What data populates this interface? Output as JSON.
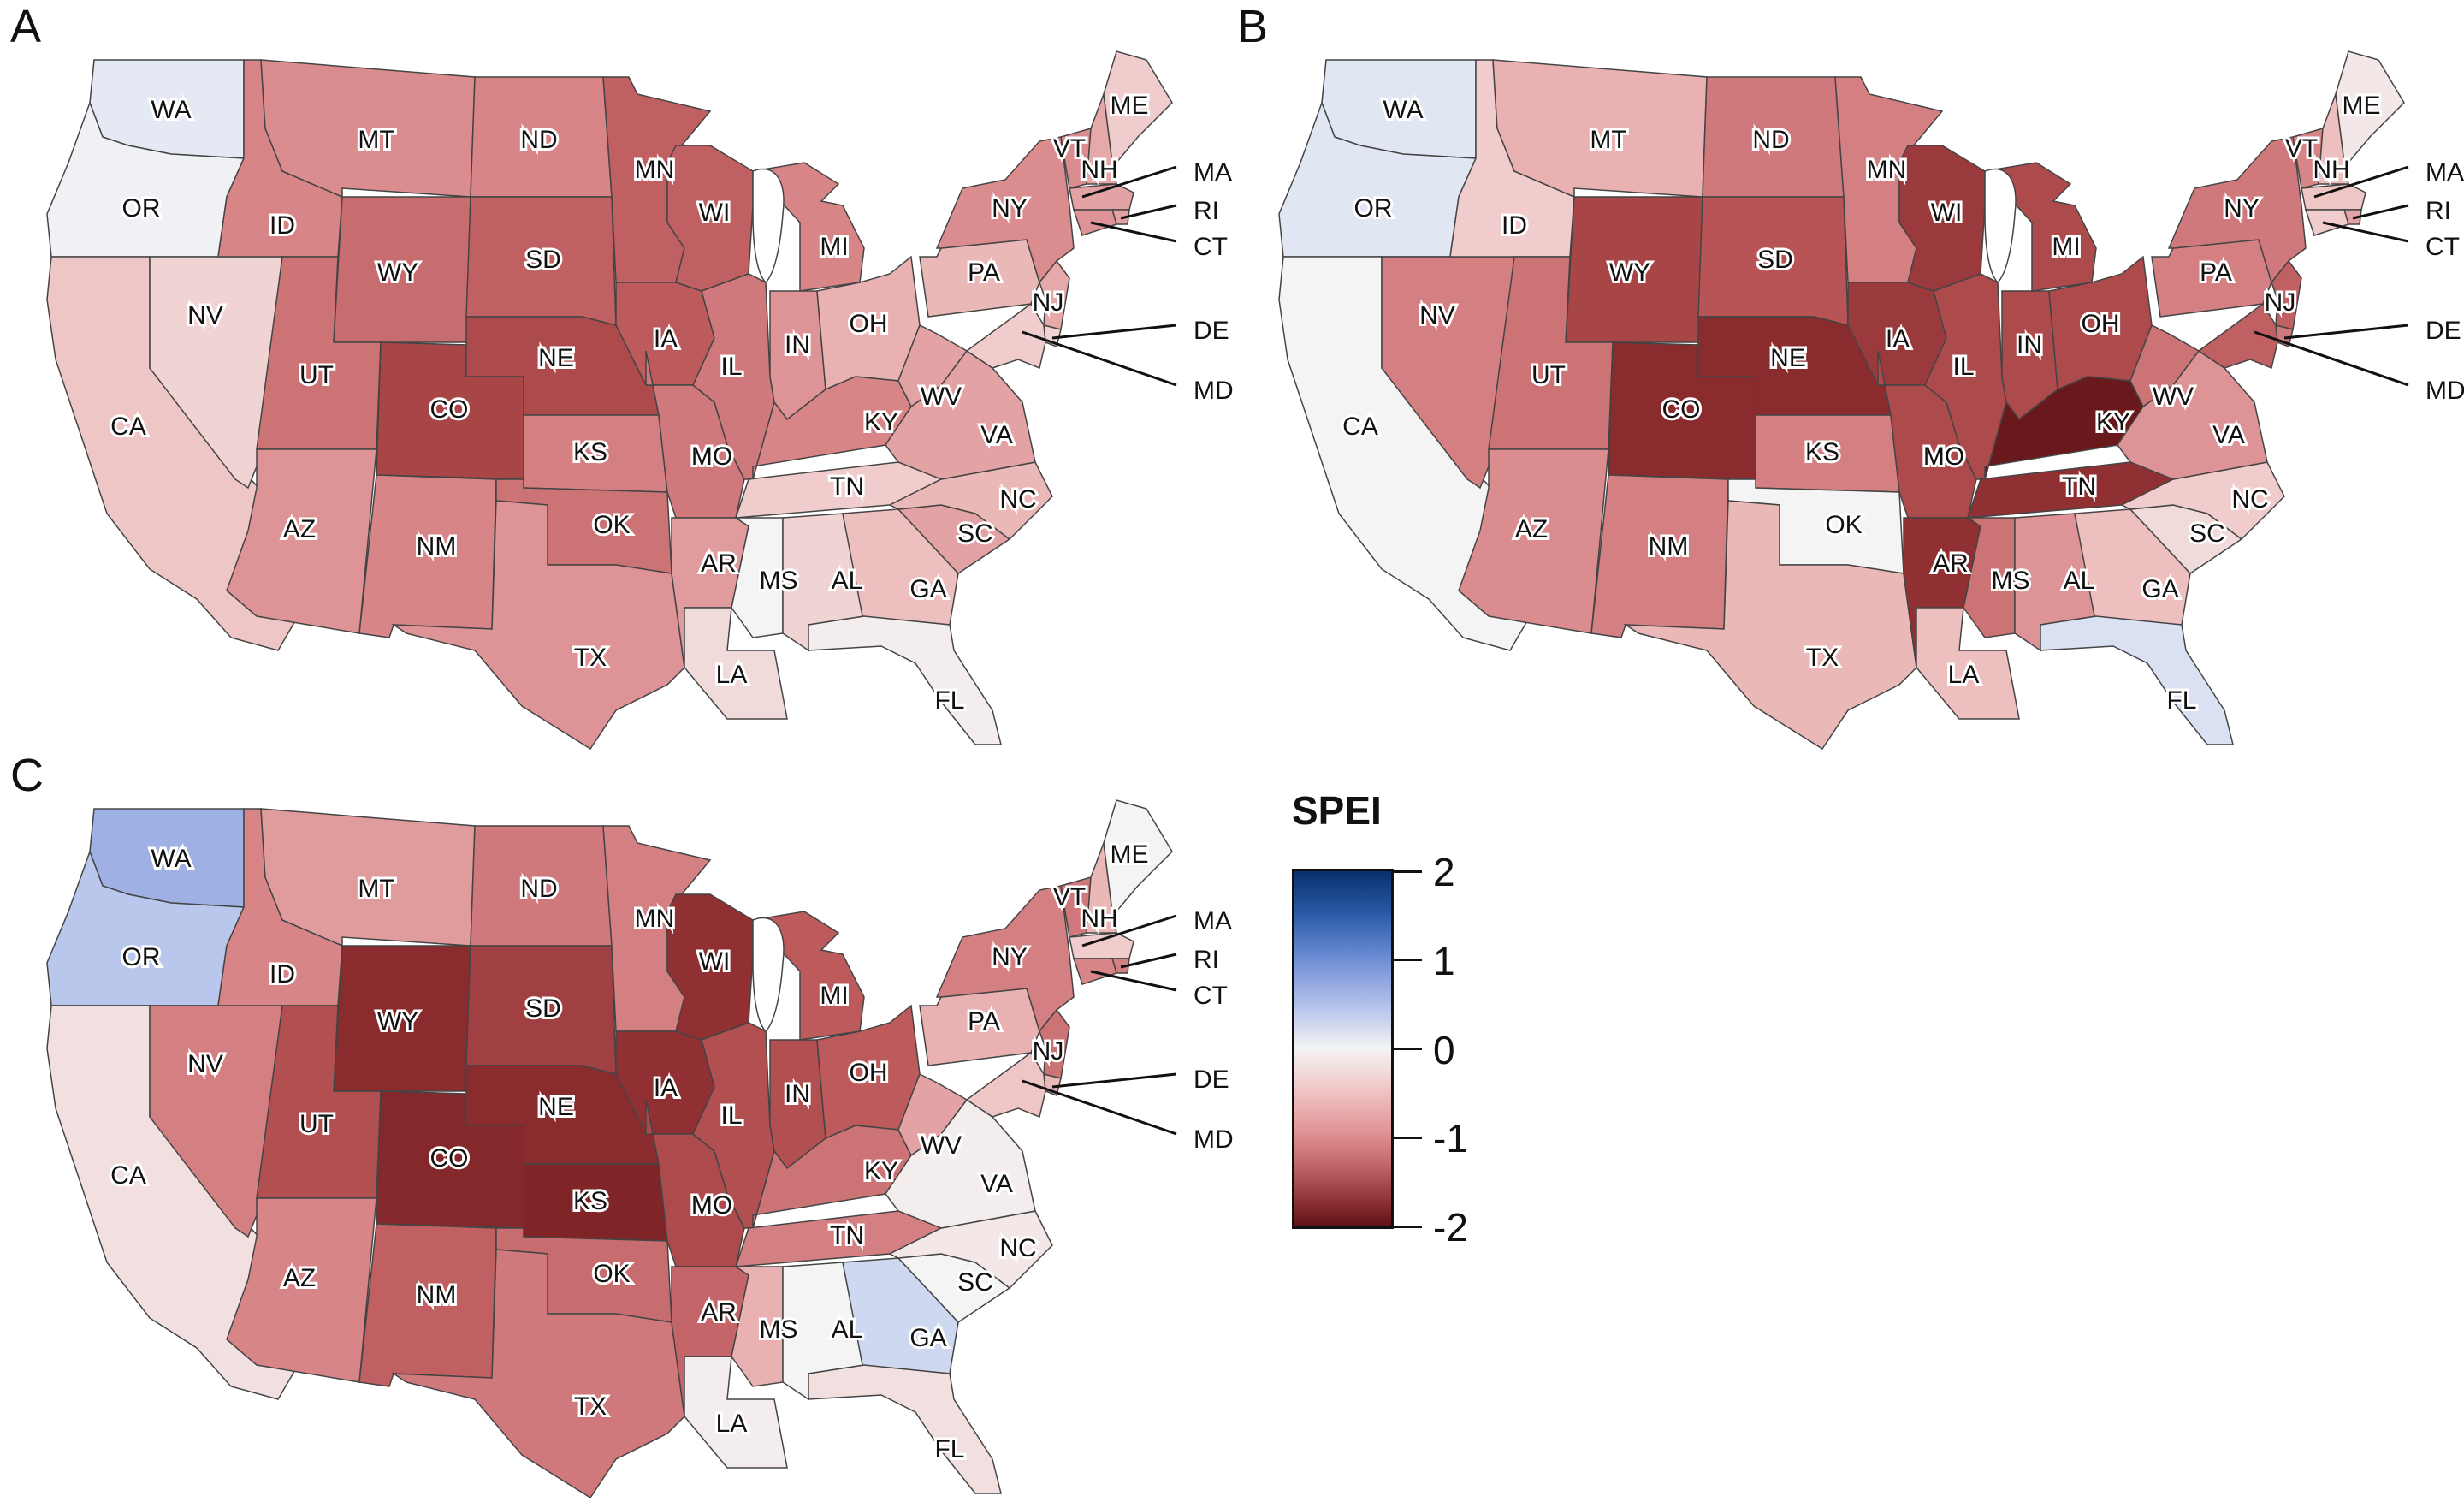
{
  "figure": {
    "panels": [
      {
        "letter": "A",
        "title": ""
      },
      {
        "letter": "B",
        "title": ""
      },
      {
        "letter": "C",
        "title": ""
      }
    ],
    "legend": {
      "title": "SPEI",
      "ticks": [
        "2",
        "1",
        "0",
        "-1",
        "-2"
      ],
      "range": [
        -2,
        2
      ],
      "colors": {
        "max": "#08306b",
        "mid_high": "#9eb0e4",
        "zero": "#f4f4f4",
        "mid_low": "#e6a0a0",
        "min": "#5e1116"
      }
    }
  },
  "chart_data": {
    "type": "choropleth",
    "variable": "SPEI",
    "scale_range": [
      -2,
      2
    ],
    "states": [
      "WA",
      "OR",
      "CA",
      "NV",
      "ID",
      "MT",
      "WY",
      "UT",
      "CO",
      "AZ",
      "NM",
      "ND",
      "SD",
      "NE",
      "KS",
      "OK",
      "TX",
      "MN",
      "IA",
      "MO",
      "AR",
      "LA",
      "WI",
      "IL",
      "MI",
      "IN",
      "OH",
      "KY",
      "TN",
      "MS",
      "AL",
      "GA",
      "FL",
      "SC",
      "NC",
      "VA",
      "WV",
      "PA",
      "NY",
      "VT",
      "NH",
      "ME",
      "MA",
      "RI",
      "CT",
      "NJ",
      "DE",
      "MD"
    ],
    "external_labels": [
      "MA",
      "RI",
      "CT",
      "DE",
      "MD"
    ],
    "panels": {
      "A": {
        "WA": 0.2,
        "OR": 0.05,
        "CA": -0.35,
        "NV": -0.25,
        "ID": -0.8,
        "MT": -0.75,
        "WY": -1.0,
        "UT": -0.95,
        "CO": -1.35,
        "AZ": -0.7,
        "NM": -0.8,
        "ND": -0.8,
        "SD": -1.1,
        "NE": -1.3,
        "KS": -0.85,
        "OK": -0.95,
        "TX": -0.7,
        "MN": -1.1,
        "IA": -1.15,
        "MO": -0.9,
        "AR": -0.65,
        "LA": -0.2,
        "WI": -1.1,
        "IL": -0.9,
        "MI": -0.8,
        "IN": -0.7,
        "OH": -0.5,
        "KY": -0.8,
        "TN": -0.3,
        "MS": 0.0,
        "AL": -0.25,
        "GA": -0.4,
        "FL": -0.05,
        "SC": -0.6,
        "NC": -0.45,
        "VA": -0.6,
        "WV": -0.6,
        "PA": -0.45,
        "NY": -0.75,
        "VT": -0.75,
        "NH": -0.55,
        "ME": -0.3,
        "MA": -0.6,
        "RI": -0.6,
        "CT": -0.7,
        "NJ": -0.55,
        "DE": -0.25,
        "MD": -0.3
      },
      "B": {
        "WA": 0.25,
        "OR": 0.25,
        "CA": 0.0,
        "NV": -0.85,
        "ID": -0.3,
        "MT": -0.5,
        "WY": -1.35,
        "UT": -0.95,
        "CO": -1.6,
        "AZ": -0.75,
        "NM": -0.85,
        "ND": -0.9,
        "SD": -1.2,
        "NE": -1.6,
        "KS": -0.85,
        "OK": 0.0,
        "TX": -0.45,
        "MN": -0.85,
        "IA": -1.45,
        "MO": -1.3,
        "AR": -1.55,
        "LA": -0.4,
        "WI": -1.45,
        "IL": -1.3,
        "MI": -1.3,
        "IN": -1.3,
        "OH": -1.3,
        "KY": -1.9,
        "TN": -1.55,
        "MS": -0.95,
        "AL": -0.7,
        "GA": -0.4,
        "FL": 0.35,
        "SC": -0.2,
        "NC": -0.3,
        "VA": -0.7,
        "WV": -0.95,
        "PA": -0.85,
        "NY": -0.9,
        "VT": -0.8,
        "NH": -0.4,
        "ME": -0.1,
        "MA": -0.35,
        "RI": -0.6,
        "CT": -0.3,
        "NJ": -1.1,
        "DE": -0.9,
        "MD": -1.1
      },
      "C": {
        "WA": 0.8,
        "OR": 0.6,
        "CA": -0.15,
        "NV": -0.85,
        "ID": -0.8,
        "MT": -0.65,
        "WY": -1.6,
        "UT": -1.25,
        "CO": -1.65,
        "AZ": -0.8,
        "NM": -1.1,
        "ND": -0.9,
        "SD": -1.4,
        "NE": -1.6,
        "KS": -1.7,
        "OK": -1.0,
        "TX": -0.9,
        "MN": -0.85,
        "IA": -1.55,
        "MO": -1.3,
        "AR": -1.05,
        "LA": -0.05,
        "WI": -1.55,
        "IL": -1.25,
        "MI": -1.15,
        "IN": -1.25,
        "OH": -1.15,
        "KY": -0.95,
        "TN": -0.85,
        "MS": -0.5,
        "AL": 0.0,
        "GA": 0.45,
        "FL": -0.15,
        "SC": 0.0,
        "NC": -0.1,
        "VA": -0.05,
        "WV": -0.6,
        "PA": -0.5,
        "NY": -0.85,
        "VT": -0.9,
        "NH": -0.45,
        "ME": 0.0,
        "MA": -0.3,
        "RI": -0.85,
        "CT": -0.8,
        "NJ": -0.95,
        "DE": -0.45,
        "MD": -0.35
      }
    }
  }
}
